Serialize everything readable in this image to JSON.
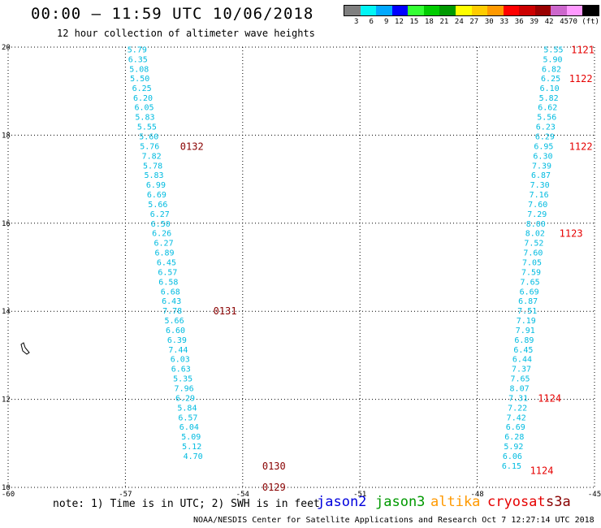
{
  "title": "00:00 – 11:59 UTC 10/06/2018",
  "subtitle": "12 hour collection of altimeter wave heights",
  "legend": {
    "unit": "(ft)",
    "swatches": [
      {
        "label": "3",
        "color": "#7f7f7f"
      },
      {
        "label": "6",
        "color": "#00f5f5"
      },
      {
        "label": "9",
        "color": "#00a8ff"
      },
      {
        "label": "12",
        "color": "#0000ff"
      },
      {
        "label": "15",
        "color": "#33ff33"
      },
      {
        "label": "18",
        "color": "#00cc00"
      },
      {
        "label": "21",
        "color": "#009900"
      },
      {
        "label": "24",
        "color": "#ffff00"
      },
      {
        "label": "27",
        "color": "#ffcc00"
      },
      {
        "label": "30",
        "color": "#ff9900"
      },
      {
        "label": "33",
        "color": "#ff0000"
      },
      {
        "label": "36",
        "color": "#cc0000"
      },
      {
        "label": "39",
        "color": "#990000"
      },
      {
        "label": "42",
        "color": "#cc66cc"
      },
      {
        "label": "45",
        "color": "#ff99ff"
      },
      {
        "label": "70",
        "color": "#000000"
      }
    ]
  },
  "axes": {
    "lon_ticks": [
      -60,
      -57,
      -54,
      -51,
      -48,
      -45
    ],
    "lat_ticks": [
      10,
      12,
      14,
      16,
      18,
      20
    ]
  },
  "tracks": [
    {
      "name": "track-west",
      "color": "#00bbe0",
      "points": [
        {
          "lon": -56.7,
          "lat": 19.95,
          "v": "5.79"
        },
        {
          "lon": -56.68,
          "lat": 19.73,
          "v": "6.35"
        },
        {
          "lon": -56.65,
          "lat": 19.51,
          "v": "5.08"
        },
        {
          "lon": -56.63,
          "lat": 19.3,
          "v": "5.50"
        },
        {
          "lon": -56.58,
          "lat": 19.08,
          "v": "6.25"
        },
        {
          "lon": -56.55,
          "lat": 18.86,
          "v": "6.20"
        },
        {
          "lon": -56.52,
          "lat": 18.64,
          "v": "6.05"
        },
        {
          "lon": -56.5,
          "lat": 18.42,
          "v": "5.83"
        },
        {
          "lon": -56.45,
          "lat": 18.2,
          "v": "5.55"
        },
        {
          "lon": -56.4,
          "lat": 17.98,
          "v": "5.60"
        },
        {
          "lon": -56.38,
          "lat": 17.76,
          "v": "5.76"
        },
        {
          "lon": -56.33,
          "lat": 17.54,
          "v": "7.82"
        },
        {
          "lon": -56.3,
          "lat": 17.32,
          "v": "5.78"
        },
        {
          "lon": -56.27,
          "lat": 17.1,
          "v": "5.83"
        },
        {
          "lon": -56.22,
          "lat": 16.88,
          "v": "6.99"
        },
        {
          "lon": -56.2,
          "lat": 16.66,
          "v": "6.69"
        },
        {
          "lon": -56.17,
          "lat": 16.44,
          "v": "5.66"
        },
        {
          "lon": -56.12,
          "lat": 16.22,
          "v": "6.27"
        },
        {
          "lon": -56.1,
          "lat": 16.0,
          "v": "6.50"
        },
        {
          "lon": -56.07,
          "lat": 15.78,
          "v": "6.26"
        },
        {
          "lon": -56.02,
          "lat": 15.56,
          "v": "6.27"
        },
        {
          "lon": -56.0,
          "lat": 15.34,
          "v": "6.89"
        },
        {
          "lon": -55.95,
          "lat": 15.12,
          "v": "6.45"
        },
        {
          "lon": -55.92,
          "lat": 14.9,
          "v": "6.57"
        },
        {
          "lon": -55.9,
          "lat": 14.68,
          "v": "6.58"
        },
        {
          "lon": -55.85,
          "lat": 14.46,
          "v": "6.68"
        },
        {
          "lon": -55.82,
          "lat": 14.24,
          "v": "6.43"
        },
        {
          "lon": -55.8,
          "lat": 14.02,
          "v": "7.78"
        },
        {
          "lon": -55.75,
          "lat": 13.8,
          "v": "5.66"
        },
        {
          "lon": -55.72,
          "lat": 13.58,
          "v": "6.60"
        },
        {
          "lon": -55.68,
          "lat": 13.36,
          "v": "6.39"
        },
        {
          "lon": -55.65,
          "lat": 13.14,
          "v": "7.44"
        },
        {
          "lon": -55.6,
          "lat": 12.92,
          "v": "6.03"
        },
        {
          "lon": -55.58,
          "lat": 12.7,
          "v": "6.63"
        },
        {
          "lon": -55.53,
          "lat": 12.48,
          "v": "5.35"
        },
        {
          "lon": -55.5,
          "lat": 12.26,
          "v": "7.96"
        },
        {
          "lon": -55.47,
          "lat": 12.04,
          "v": "6.29"
        },
        {
          "lon": -55.42,
          "lat": 11.82,
          "v": "5.84"
        },
        {
          "lon": -55.4,
          "lat": 11.6,
          "v": "6.57"
        },
        {
          "lon": -55.37,
          "lat": 11.38,
          "v": "6.04"
        },
        {
          "lon": -55.32,
          "lat": 11.16,
          "v": "5.09"
        },
        {
          "lon": -55.3,
          "lat": 10.94,
          "v": "5.12"
        },
        {
          "lon": -55.27,
          "lat": 10.72,
          "v": "4.70"
        }
      ]
    },
    {
      "name": "track-east",
      "color": "#00bbe0",
      "points": [
        {
          "lon": -46.05,
          "lat": 19.95,
          "v": "5.55"
        },
        {
          "lon": -46.07,
          "lat": 19.73,
          "v": "5.90"
        },
        {
          "lon": -46.1,
          "lat": 19.51,
          "v": "6.82"
        },
        {
          "lon": -46.12,
          "lat": 19.3,
          "v": "6.25"
        },
        {
          "lon": -46.15,
          "lat": 19.08,
          "v": "6.10"
        },
        {
          "lon": -46.17,
          "lat": 18.86,
          "v": "5.82"
        },
        {
          "lon": -46.2,
          "lat": 18.64,
          "v": "6.62"
        },
        {
          "lon": -46.22,
          "lat": 18.42,
          "v": "5.56"
        },
        {
          "lon": -46.25,
          "lat": 18.2,
          "v": "6.23"
        },
        {
          "lon": -46.27,
          "lat": 17.98,
          "v": "6.29"
        },
        {
          "lon": -46.3,
          "lat": 17.76,
          "v": "6.95"
        },
        {
          "lon": -46.32,
          "lat": 17.54,
          "v": "6.30"
        },
        {
          "lon": -46.35,
          "lat": 17.32,
          "v": "7.39"
        },
        {
          "lon": -46.37,
          "lat": 17.1,
          "v": "6.87"
        },
        {
          "lon": -46.4,
          "lat": 16.88,
          "v": "7.30"
        },
        {
          "lon": -46.42,
          "lat": 16.66,
          "v": "7.16"
        },
        {
          "lon": -46.45,
          "lat": 16.44,
          "v": "7.60"
        },
        {
          "lon": -46.47,
          "lat": 16.22,
          "v": "7.29"
        },
        {
          "lon": -46.5,
          "lat": 16.0,
          "v": "8.00"
        },
        {
          "lon": -46.52,
          "lat": 15.78,
          "v": "8.02"
        },
        {
          "lon": -46.55,
          "lat": 15.56,
          "v": "7.52"
        },
        {
          "lon": -46.57,
          "lat": 15.34,
          "v": "7.60"
        },
        {
          "lon": -46.6,
          "lat": 15.12,
          "v": "7.05"
        },
        {
          "lon": -46.62,
          "lat": 14.9,
          "v": "7.59"
        },
        {
          "lon": -46.65,
          "lat": 14.68,
          "v": "7.65"
        },
        {
          "lon": -46.67,
          "lat": 14.46,
          "v": "6.69"
        },
        {
          "lon": -46.7,
          "lat": 14.24,
          "v": "6.87"
        },
        {
          "lon": -46.72,
          "lat": 14.02,
          "v": "7.51"
        },
        {
          "lon": -46.75,
          "lat": 13.8,
          "v": "7.19"
        },
        {
          "lon": -46.77,
          "lat": 13.58,
          "v": "7.91"
        },
        {
          "lon": -46.8,
          "lat": 13.36,
          "v": "6.89"
        },
        {
          "lon": -46.82,
          "lat": 13.14,
          "v": "6.45"
        },
        {
          "lon": -46.85,
          "lat": 12.92,
          "v": "6.44"
        },
        {
          "lon": -46.87,
          "lat": 12.7,
          "v": "7.37"
        },
        {
          "lon": -46.9,
          "lat": 12.48,
          "v": "7.65"
        },
        {
          "lon": -46.92,
          "lat": 12.26,
          "v": "8.07"
        },
        {
          "lon": -46.95,
          "lat": 12.04,
          "v": "7.31"
        },
        {
          "lon": -46.97,
          "lat": 11.82,
          "v": "7.22"
        },
        {
          "lon": -47.0,
          "lat": 11.6,
          "v": "7.42"
        },
        {
          "lon": -47.02,
          "lat": 11.38,
          "v": "6.69"
        },
        {
          "lon": -47.05,
          "lat": 11.16,
          "v": "6.28"
        },
        {
          "lon": -47.07,
          "lat": 10.94,
          "v": "5.92"
        },
        {
          "lon": -47.1,
          "lat": 10.72,
          "v": "6.06"
        },
        {
          "lon": -47.12,
          "lat": 10.5,
          "v": "6.15"
        }
      ]
    }
  ],
  "time_labels": [
    {
      "text": "0132",
      "color": "#880000",
      "lon": -55.3,
      "lat": 17.76
    },
    {
      "text": "0131",
      "color": "#880000",
      "lon": -54.45,
      "lat": 14.02
    },
    {
      "text": "0130",
      "color": "#880000",
      "lon": -53.2,
      "lat": 10.5
    },
    {
      "text": "0129",
      "color": "#880000",
      "lon": -53.2,
      "lat": 10.02
    },
    {
      "text": "1121",
      "color": "#e60000",
      "lon": -45.3,
      "lat": 19.95
    },
    {
      "text": "1122",
      "color": "#e60000",
      "lon": -45.35,
      "lat": 19.3
    },
    {
      "text": "1122",
      "color": "#e60000",
      "lon": -45.35,
      "lat": 17.76
    },
    {
      "text": "1123",
      "color": "#e60000",
      "lon": -45.6,
      "lat": 15.78
    },
    {
      "text": "1124",
      "color": "#e60000",
      "lon": -46.15,
      "lat": 12.04
    },
    {
      "text": "1124",
      "color": "#e60000",
      "lon": -46.35,
      "lat": 10.4
    }
  ],
  "note": "note: 1) Time is in UTC; 2) SWH is in feet",
  "satellites": [
    {
      "name": "jason2",
      "color": "#0000dd"
    },
    {
      "name": "jason3",
      "color": "#009900"
    },
    {
      "name": "altika",
      "color": "#ff9900"
    },
    {
      "name": "cryosat",
      "color": "#e60000"
    },
    {
      "name": "s3a",
      "color": "#880000"
    }
  ],
  "footer": "NOAA/NESDIS Center for Satellite Applications and Research   Oct  7 12:27:14 UTC 2018"
}
